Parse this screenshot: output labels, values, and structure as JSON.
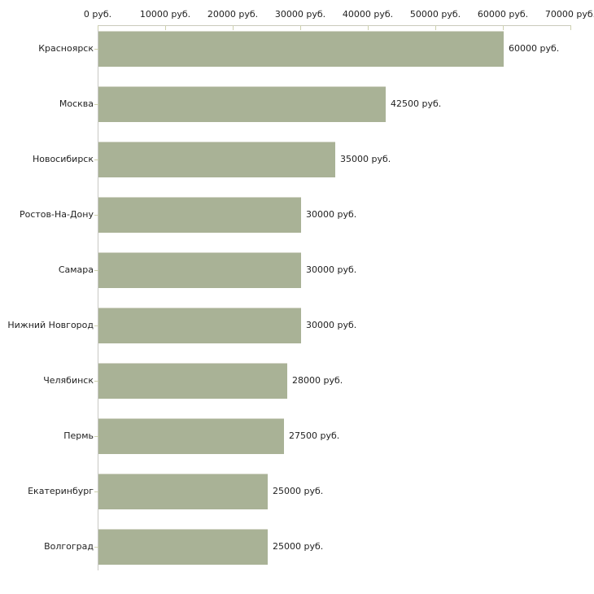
{
  "chart_data": {
    "type": "bar",
    "orientation": "horizontal",
    "title": "",
    "xlabel": "",
    "ylabel": "",
    "grid": false,
    "legend": false,
    "categories": [
      "Красноярск",
      "Москва",
      "Новосибирск",
      "Ростов-На-Дону",
      "Самара",
      "Нижний Новгород",
      "Челябинск",
      "Пермь",
      "Екатеринбург",
      "Волгоград"
    ],
    "values": [
      60000,
      42500,
      35000,
      30000,
      30000,
      30000,
      28000,
      27500,
      25000,
      25000
    ],
    "value_labels": [
      "60000 руб.",
      "42500 руб.",
      "35000 руб.",
      "30000 руб.",
      "30000 руб.",
      "30000 руб.",
      "28000 руб.",
      "27500 руб.",
      "25000 руб.",
      "25000 руб."
    ],
    "unit": "руб.",
    "x_axis": {
      "position": "top",
      "range": [
        0,
        70000
      ],
      "tick_values": [
        0,
        10000,
        20000,
        30000,
        40000,
        50000,
        60000,
        70000
      ],
      "tick_labels": [
        "0 руб.",
        "10000 руб.",
        "20000 руб.",
        "30000 руб.",
        "40000 руб.",
        "50000 руб.",
        "60000 руб.",
        "70000 руб."
      ]
    },
    "colors": {
      "bar": "#a9b296",
      "bar_top_edge": "#d4d6c8",
      "axis_line_vertical": "#c8c8c4",
      "axis_line_horizontal": "#c9c9bb",
      "tick": "#cdd0ae",
      "text": "#1f1f1f",
      "background": "#ffffff"
    }
  }
}
